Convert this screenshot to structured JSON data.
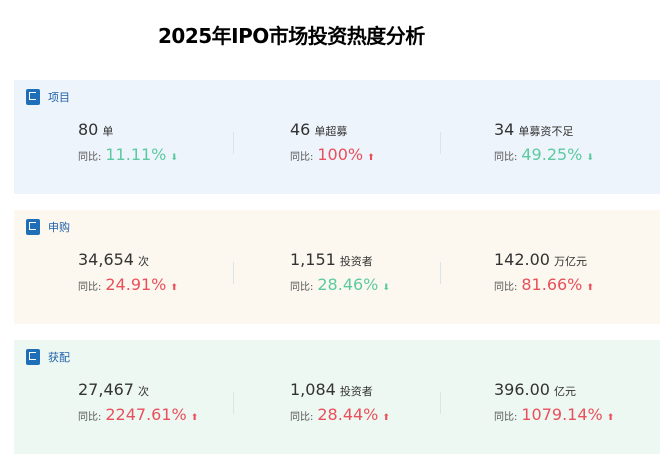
{
  "title": "2025年IPO市场投资热度分析",
  "sections": [
    {
      "label": "项目",
      "bg": "#eef4fb",
      "items": [
        {
          "value": "80",
          "unit": "单",
          "yoy_label": "同比:",
          "pct": "11.11%",
          "dir": "down"
        },
        {
          "value": "46",
          "unit": "单超募",
          "yoy_label": "同比:",
          "pct": "100%",
          "dir": "up"
        },
        {
          "value": "34",
          "unit": "单募资不足",
          "yoy_label": "同比:",
          "pct": "49.25%",
          "dir": "down"
        }
      ]
    },
    {
      "label": "申购",
      "bg": "#fcf8ef",
      "items": [
        {
          "value": "34,654",
          "unit": "次",
          "yoy_label": "同比:",
          "pct": "24.91%",
          "dir": "up"
        },
        {
          "value": "1,151",
          "unit": "投资者",
          "yoy_label": "同比:",
          "pct": "28.46%",
          "dir": "down"
        },
        {
          "value": "142.00",
          "unit": "万亿元",
          "yoy_label": "同比:",
          "pct": "81.66%",
          "dir": "up"
        }
      ]
    },
    {
      "label": "获配",
      "bg": "#eef8f3",
      "items": [
        {
          "value": "27,467",
          "unit": "次",
          "yoy_label": "同比:",
          "pct": "2247.61%",
          "dir": "up"
        },
        {
          "value": "1,084",
          "unit": "投资者",
          "yoy_label": "同比:",
          "pct": "28.44%",
          "dir": "up"
        },
        {
          "value": "396.00",
          "unit": "亿元",
          "yoy_label": "同比:",
          "pct": "1079.14%",
          "dir": "up"
        }
      ]
    }
  ],
  "colors": {
    "up": "#e8505b",
    "down": "#5ccaa0",
    "accent": "#1e6fb8"
  }
}
